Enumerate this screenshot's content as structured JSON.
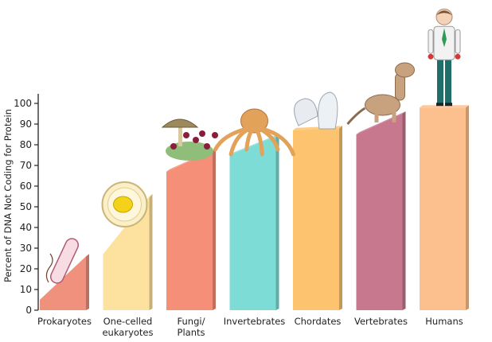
{
  "chart_data": {
    "type": "bar",
    "title": "",
    "xlabel": "",
    "ylabel": "Percent of DNA Not Coding for Protein",
    "ylim": [
      0,
      100
    ],
    "yticks": [
      0,
      10,
      20,
      30,
      40,
      50,
      60,
      70,
      80,
      90,
      100
    ],
    "grid": false,
    "categories": [
      [
        "Prokaryotes"
      ],
      [
        "One-celled",
        "eukaryotes"
      ],
      [
        "Fungi/",
        "Plants"
      ],
      [
        "Invertebrates"
      ],
      [
        "Chordates"
      ],
      [
        "Vertebrates"
      ],
      [
        "Humans"
      ]
    ],
    "values": [
      {
        "low": 5,
        "high": 26
      },
      {
        "low": 27,
        "high": 55
      },
      {
        "low": 67,
        "high": 77
      },
      {
        "low": 75,
        "high": 84
      },
      {
        "low": 87,
        "high": 88
      },
      {
        "low": 85,
        "high": 95
      },
      {
        "low": 98,
        "high": 98
      }
    ],
    "colors": [
      "#f0917e",
      "#fce29e",
      "#f58f78",
      "#7edcd6",
      "#fec36e",
      "#c7788f",
      "#fcc08e"
    ],
    "illustrations": [
      "bacterium",
      "yeast-cell",
      "mushroom-and-flowers",
      "octopus",
      "sea-squirts",
      "dog",
      "human"
    ]
  }
}
